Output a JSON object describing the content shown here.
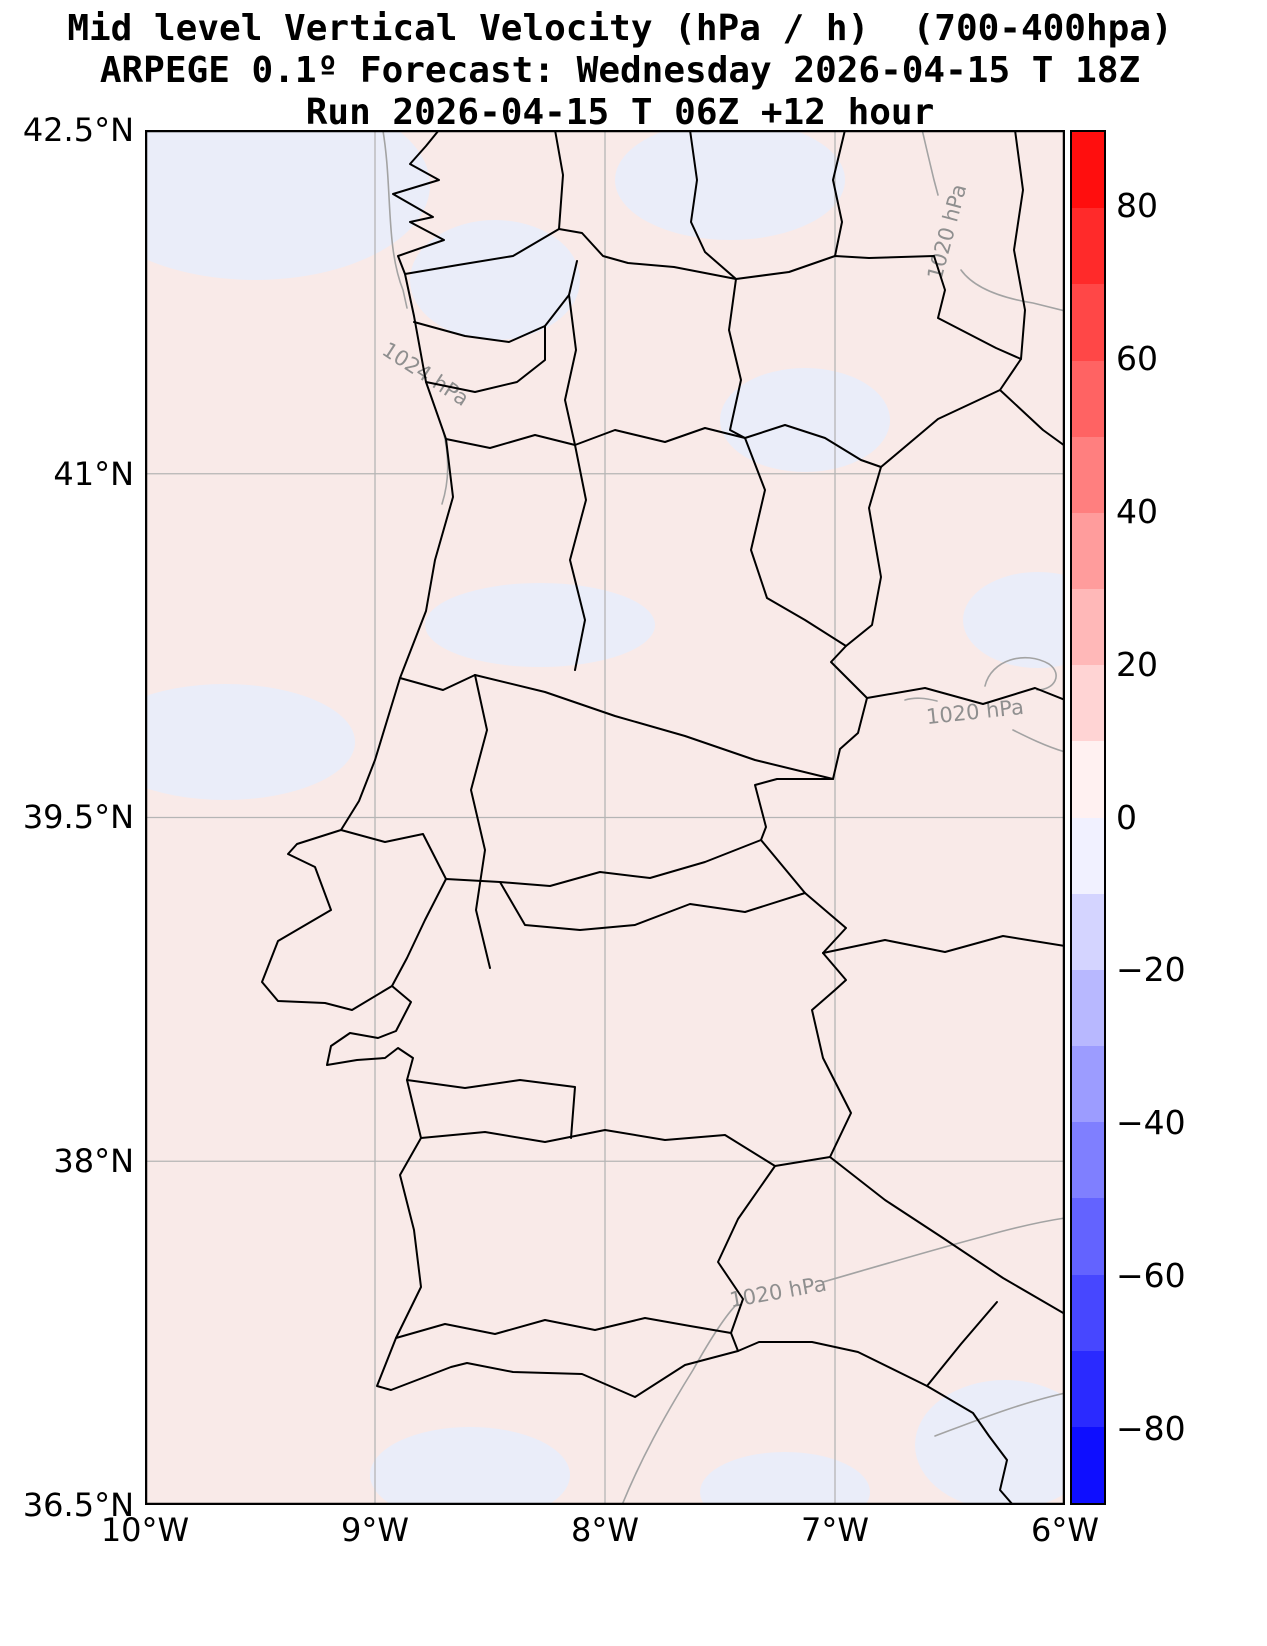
{
  "title": {
    "line1": "Mid level Vertical Velocity (hPa / h)  (700-400hpa)",
    "line2": "ARPEGE 0.1º Forecast: Wednesday 2026-04-15 T 18Z",
    "line3": "Run 2026-04-15 T 06Z +12 hour"
  },
  "axes": {
    "y_ticks": [
      "42.5°N",
      "41°N",
      "39.5°N",
      "38°N",
      "36.5°N"
    ],
    "x_ticks": [
      "10°W",
      "9°W",
      "8°W",
      "7°W",
      "6°W"
    ]
  },
  "contours": {
    "label_1024": "1024 hPa",
    "label_1020_top": "1020 hPa",
    "label_1020_mid": "1020 hPa",
    "label_1020_bottom": "1020 hPa"
  },
  "colorbar": {
    "tick_labels": [
      "80",
      "60",
      "40",
      "20",
      "0",
      "−20",
      "−40",
      "−60",
      "−80"
    ]
  },
  "chart_data": {
    "type": "heatmap",
    "title": "Mid level Vertical Velocity (hPa / h)  (700-400hpa)",
    "subtitle": "ARPEGE 0.1º Forecast: Wednesday 2026-04-15 T 18Z",
    "run_info": "Run 2026-04-15 T 06Z +12 hour",
    "model": "ARPEGE 0.1º",
    "valid_time": "Wednesday 2026-04-15 T 18Z",
    "run_time": "2026-04-15 T 06Z",
    "lead_hours": 12,
    "units": "hPa / h",
    "layer": "700-400 hPa",
    "x_axis": {
      "ticks": [
        "10°W",
        "9°W",
        "8°W",
        "7°W",
        "6°W"
      ],
      "range_deg_lon": [
        -10,
        -6
      ]
    },
    "y_axis": {
      "ticks": [
        "42.5°N",
        "41°N",
        "39.5°N",
        "38°N",
        "36.5°N"
      ],
      "range_deg_lat": [
        36.5,
        42.5
      ]
    },
    "grid": true,
    "gridlines": {
      "lon_w": [
        9,
        8,
        7
      ],
      "lat_n": [
        41,
        39.5,
        38
      ]
    },
    "colorbar": {
      "min": -90,
      "max": 90,
      "level_step": 10,
      "tick_values": [
        80,
        60,
        40,
        20,
        0,
        -20,
        -40,
        -60,
        -80
      ],
      "band_colors_top_to_bottom": [
        "#ff0e0e",
        "#ff2a2a",
        "#ff4747",
        "#ff6363",
        "#ff7f7f",
        "#ff9c9c",
        "#ffb8b8",
        "#ffd4d4",
        "#fff1f1",
        "#f1f1ff",
        "#d4d4ff",
        "#b8b8ff",
        "#9c9cff",
        "#7f7fff",
        "#6363ff",
        "#4747ff",
        "#2a2aff",
        "#0e0eff"
      ]
    },
    "map_colors": {
      "background": "#f9eae8",
      "negative_patch": "#eaedf9",
      "boundary": "#000000",
      "isobar": "#a3a3a3"
    },
    "field": {
      "dominant_band": "0 to +10 hPa/h (pale pink) over most of the domain",
      "negative_band": "0 to -10 hPa/h (pale blue patches)",
      "negative_patch_locations": [
        "northwest corner near the Galicia coast",
        "north-central near 42.3N 7.5W",
        "near 41.3N 7.2W",
        "band near 40.3N 8.2W",
        "west edge near 39.8N",
        "east edge near 40.4N",
        "south near 37.0N 8.6W",
        "south-central near 36.8N 7.2W",
        "southeast corner near 36.8N 6.3W"
      ]
    },
    "isobars": [
      {
        "label": "1024 hPa",
        "location": "northwest, near 41.6N 8.8W"
      },
      {
        "label": "1020 hPa",
        "location": "north edge, near 42.2N 6.5W"
      },
      {
        "label": "1020 hPa",
        "location": "east edge, near 39.6N 6.3W"
      },
      {
        "label": "1020 hPa",
        "location": "south, near 37.1N 7.1W"
      }
    ],
    "map": {
      "region": "Portugal and western Spain",
      "features": [
        "Atlantic coastline",
        "Portugal-Spain border",
        "district and province boundaries"
      ]
    }
  }
}
